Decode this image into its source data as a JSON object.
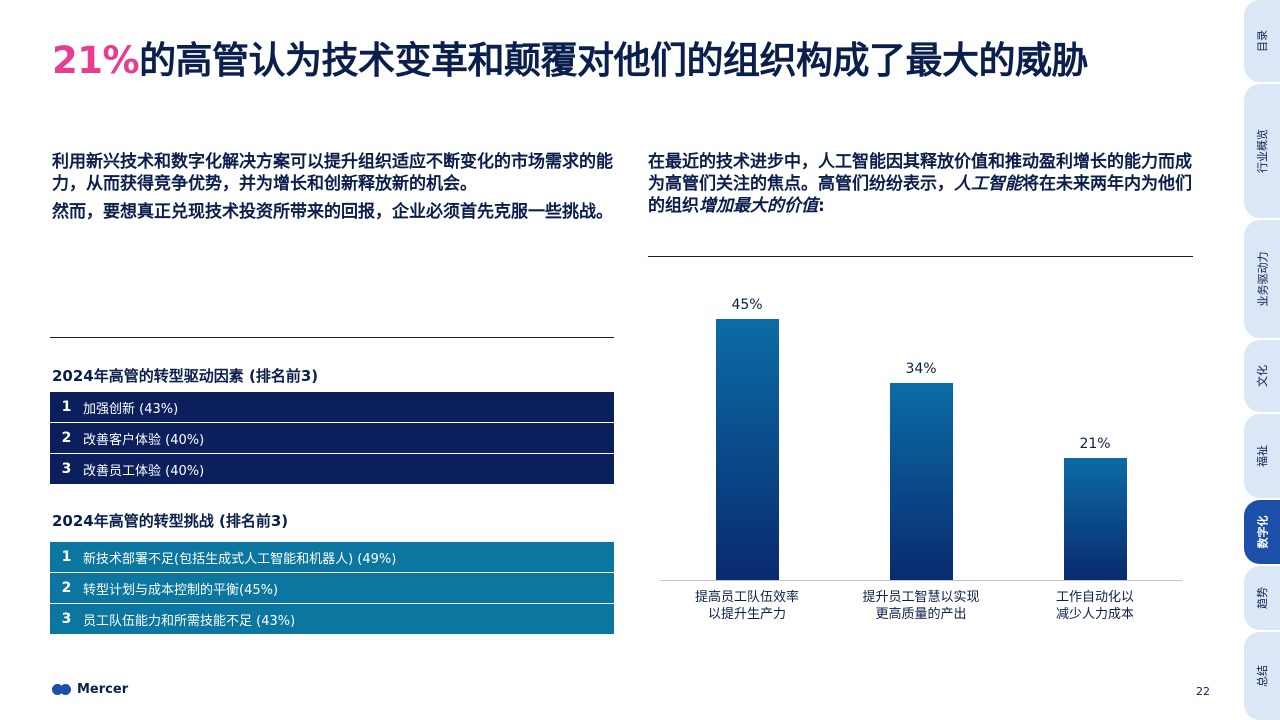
{
  "headline": {
    "highlight": "21%",
    "rest": "的高管认为技术变革和颠覆对他们的组织构成了最大的威胁"
  },
  "intro_left": {
    "p1": "利用新兴技术和数字化解决方案可以提升组织适应不断变化的市场需求的能力，从而获得竞争优势，并为增长和创新释放新的机会。",
    "p2": "然而，要想真正兑现技术投资所带来的回报，企业必须首先克服一些挑战。"
  },
  "intro_right": {
    "part1": "在最近的技术进步中，人工智能因其释放价值和推动盈利增长的能力而成为高管们关注的焦点。高管们纷纷表示，",
    "em1": "人工智能",
    "part2": "将在未来两年内为他们的组织",
    "em2": "增加最大的价值",
    "part3": ":"
  },
  "drivers": {
    "title": "2024年高管的转型驱动因素 (排名前3)",
    "items": [
      {
        "num": "1",
        "label": "加强创新 (43%)"
      },
      {
        "num": "2",
        "label": "改善客户体验 (40%)"
      },
      {
        "num": "3",
        "label": "改善员工体验 (40%)"
      }
    ]
  },
  "challenges": {
    "title": "2024年高管的转型挑战 (排名前3)",
    "items": [
      {
        "num": "1",
        "label": "新技术部署不足(包括生成式人工智能和机器人) (49%)"
      },
      {
        "num": "2",
        "label": "转型计划与成本控制的平衡(45%)"
      },
      {
        "num": "3",
        "label": "员工队伍能力和所需技能不足 (43%)"
      }
    ]
  },
  "chart_data": {
    "type": "bar",
    "categories": [
      "提高员工队伍效率\n以提升生产力",
      "提升员工智慧以实现\n更高质量的产出",
      "工作自动化以\n减少人力成本"
    ],
    "values": [
      45,
      34,
      21
    ],
    "value_labels": [
      "45%",
      "34%",
      "21%"
    ],
    "ylim": [
      0,
      50
    ],
    "grid": false,
    "title": "",
    "xlabel": "",
    "ylabel": ""
  },
  "footer": {
    "logo": "Mercer",
    "page": "22"
  },
  "side_tabs": [
    {
      "label": "目录",
      "active": false
    },
    {
      "label": "行业概览",
      "active": false
    },
    {
      "label": "业务驱动力",
      "active": false
    },
    {
      "label": "文化",
      "active": false
    },
    {
      "label": "福祉",
      "active": false
    },
    {
      "label": "数字化",
      "active": true
    },
    {
      "label": "趋势",
      "active": false
    },
    {
      "label": "总结",
      "active": false
    }
  ],
  "colors": {
    "accent": "#e73c8f",
    "navy": "#0a1f5c",
    "teal": "#0b76a0",
    "tab_bg": "#dbe7f7",
    "tab_active": "#1b4fa8"
  }
}
